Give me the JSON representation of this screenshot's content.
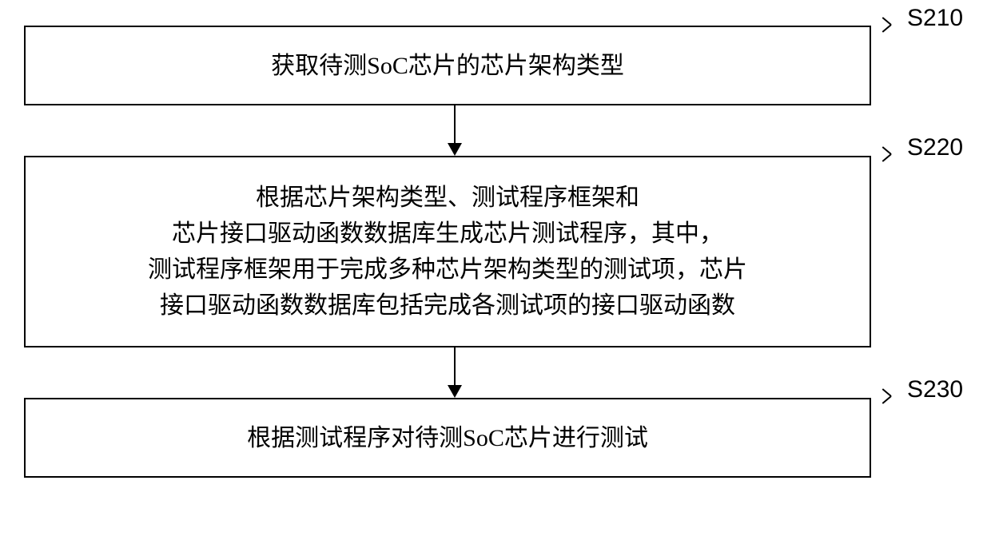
{
  "flowchart": {
    "type": "flowchart",
    "background_color": "#ffffff",
    "border_color": "#000000",
    "text_color": "#000000",
    "font_family": "SimSun",
    "label_font_family": "Arial",
    "box_font_size": 30,
    "label_font_size": 30,
    "border_width": 2,
    "arrow_width": 18,
    "arrow_height": 16,
    "steps": [
      {
        "id": "s210",
        "label": "S210",
        "text": "获取待测SoC芯片的芯片架构类型"
      },
      {
        "id": "s220",
        "label": "S220",
        "text": "根据芯片架构类型、测试程序框架和\n芯片接口驱动函数数据库生成芯片测试程序，其中，\n测试程序框架用于完成多种芯片架构类型的测试项，芯片\n接口驱动函数数据库包括完成各测试项的接口驱动函数"
      },
      {
        "id": "s230",
        "label": "S230",
        "text": "根据测试程序对待测SoC芯片进行测试"
      }
    ]
  }
}
